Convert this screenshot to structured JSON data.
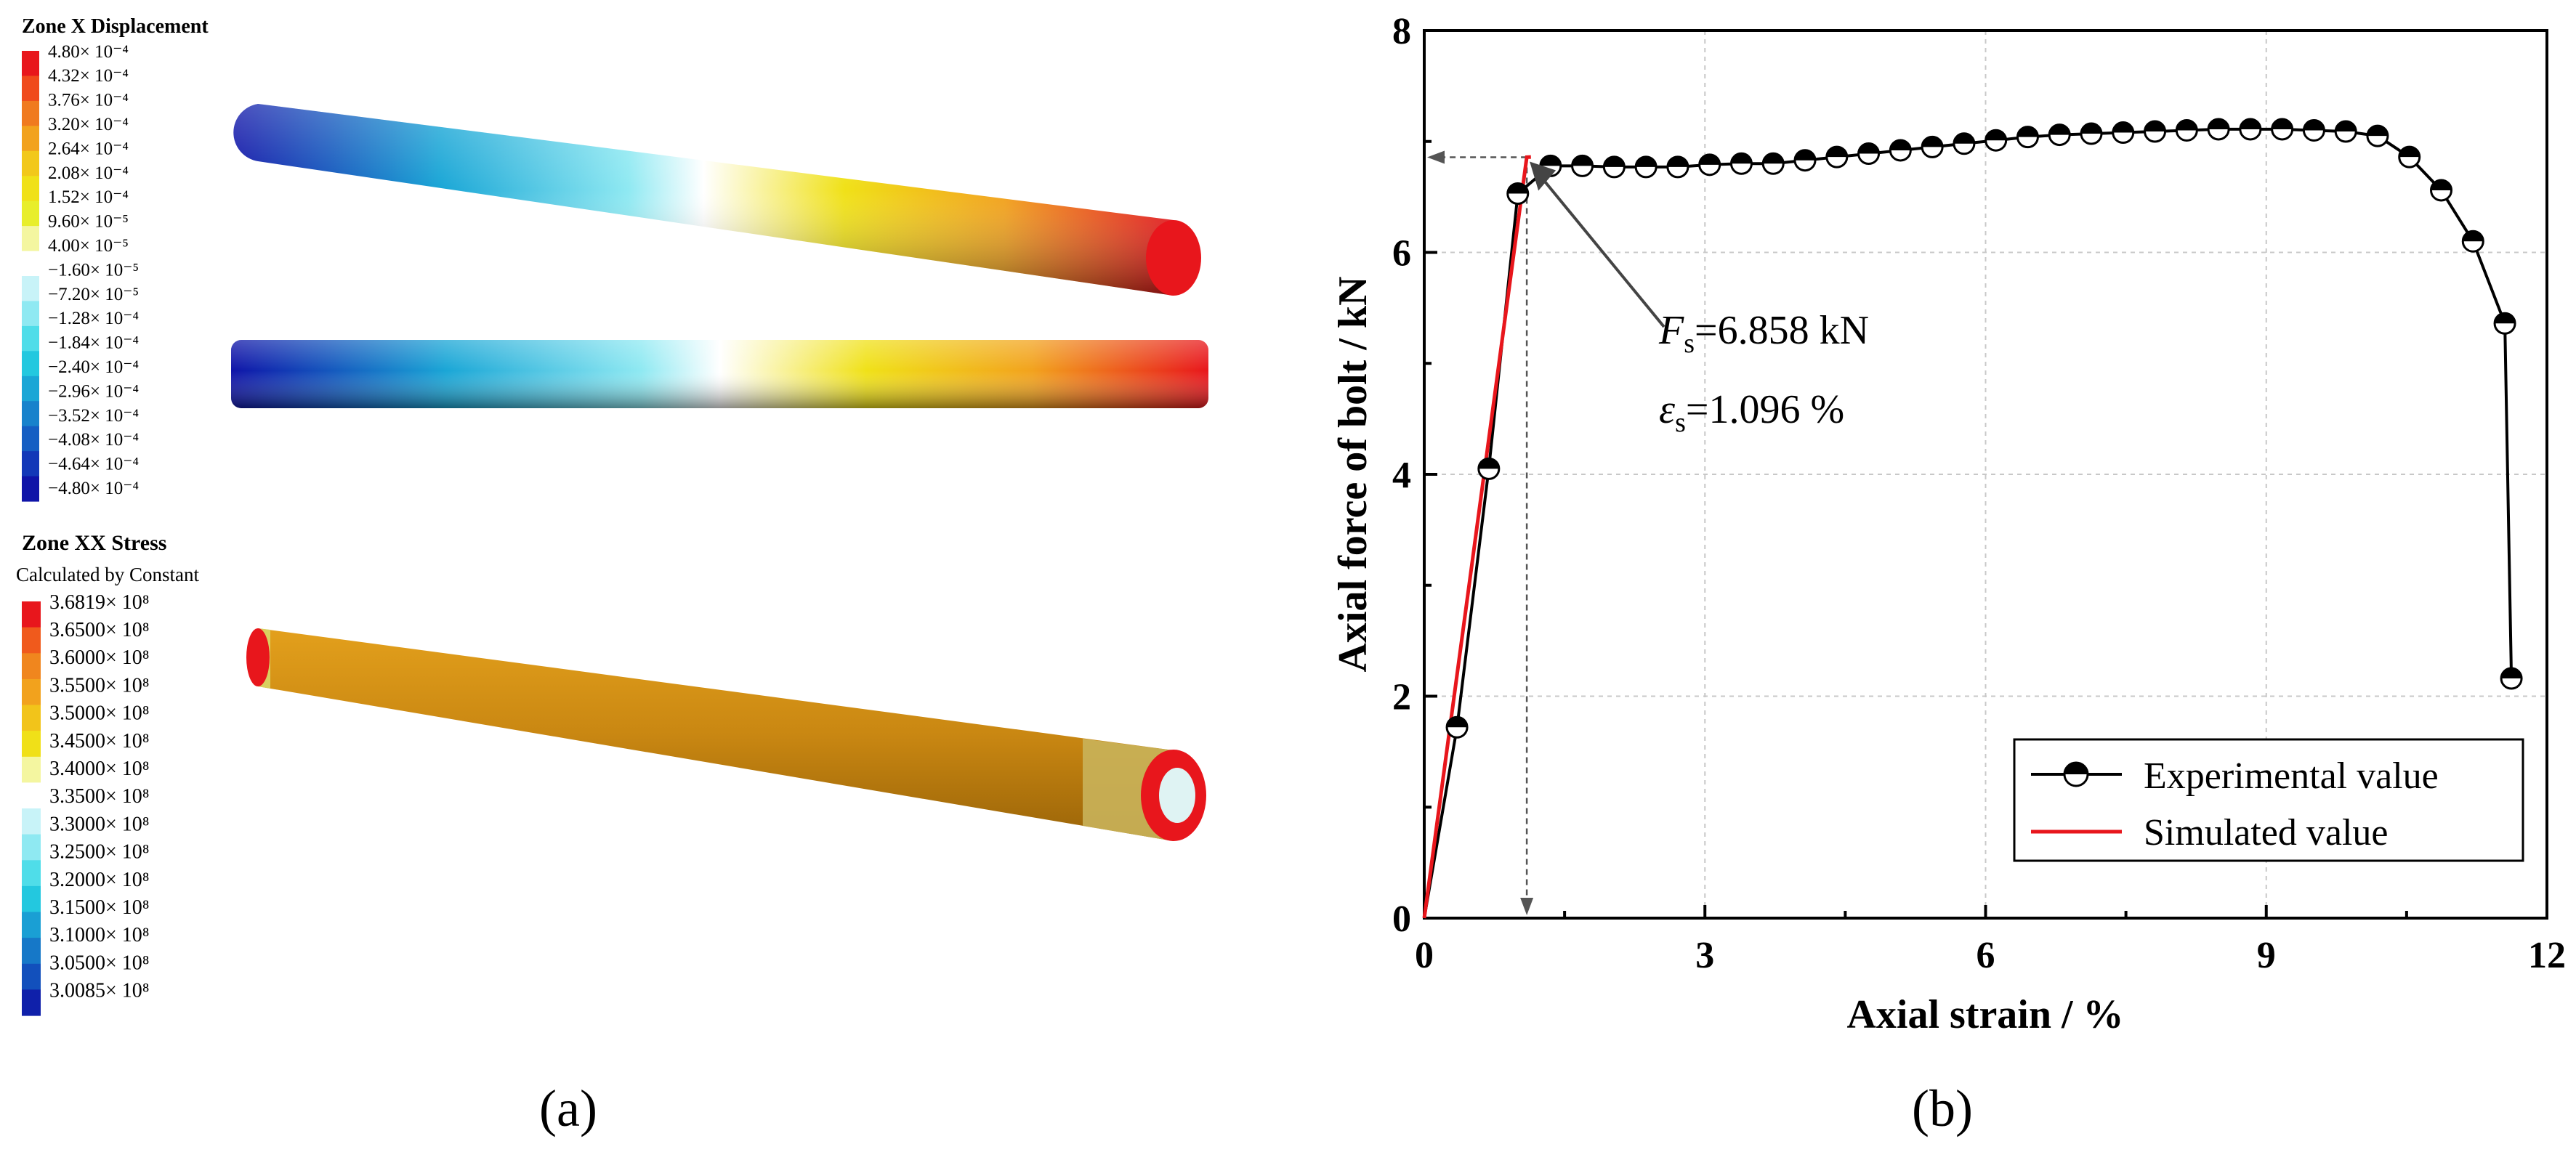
{
  "panel_a": {
    "caption": "(a)",
    "displacement": {
      "title": "Zone X Displacement",
      "colors": [
        "#e8161c",
        "#f04a1c",
        "#f07a1f",
        "#f2a21d",
        "#f2c81a",
        "#f0e118",
        "#e8ee2b",
        "#f4f6a0",
        "#ffffff",
        "#c8f3f8",
        "#8fe9f2",
        "#4fdde9",
        "#23c8df",
        "#1aa6d6",
        "#1782cc",
        "#145ec3",
        "#1238b8",
        "#0f14a8"
      ],
      "labels": [
        "4.80× 10⁻⁴",
        "4.32× 10⁻⁴",
        "3.76× 10⁻⁴",
        "3.20× 10⁻⁴",
        "2.64× 10⁻⁴",
        "2.08× 10⁻⁴",
        "1.52× 10⁻⁴",
        "9.60× 10⁻⁵",
        "4.00× 10⁻⁵",
        "−1.60× 10⁻⁵",
        "−7.20× 10⁻⁵",
        "−1.28× 10⁻⁴",
        "−1.84× 10⁻⁴",
        "−2.40× 10⁻⁴",
        "−2.96× 10⁻⁴",
        "−3.52× 10⁻⁴",
        "−4.08× 10⁻⁴",
        "−4.64× 10⁻⁴",
        "−4.80× 10⁻⁴"
      ]
    },
    "stress": {
      "title": "Zone XX Stress",
      "subtitle": "Calculated by Constant",
      "colors": [
        "#e8161c",
        "#f05a1c",
        "#f0861e",
        "#f2a21d",
        "#f2c41a",
        "#f0e018",
        "#f4f6a0",
        "#ffffff",
        "#c8f3f8",
        "#8fe9f2",
        "#4fdde9",
        "#23c8df",
        "#1a9fd4",
        "#1678c8",
        "#1250bc",
        "#0f20aa"
      ],
      "labels": [
        "3.6819× 10⁸",
        "3.6500× 10⁸",
        "3.6000× 10⁸",
        "3.5500× 10⁸",
        "3.5000× 10⁸",
        "3.4500× 10⁸",
        "3.4000× 10⁸",
        "3.3500× 10⁸",
        "3.3000× 10⁸",
        "3.2500× 10⁸",
        "3.2000× 10⁸",
        "3.1500× 10⁸",
        "3.1000× 10⁸",
        "3.0500× 10⁸",
        "3.0085× 10⁸"
      ]
    }
  },
  "panel_b": {
    "caption": "(b)",
    "annotation": {
      "force_symbol": "F",
      "force_sub": "s",
      "force_text": "=6.858 kN",
      "strain_symbol": "ε",
      "strain_sub": "s",
      "strain_text": "=1.096 %",
      "yield_strain": 1.096,
      "yield_force": 6.858
    },
    "chart_data": {
      "type": "line",
      "xlabel": "Axial strain / %",
      "ylabel": "Axial force of  bolt / kN",
      "xlim": [
        0,
        12
      ],
      "ylim": [
        0,
        8
      ],
      "xticks": [
        0,
        3,
        6,
        9,
        12
      ],
      "yticks": [
        0,
        2,
        4,
        6,
        8
      ],
      "grid": true,
      "legend_position": "bottom-right",
      "series": [
        {
          "name": "Experimental value",
          "color": "#000000",
          "marker": "half-filled-circle",
          "x": [
            0.0,
            0.35,
            0.69,
            1.0,
            1.35,
            1.69,
            2.03,
            2.37,
            2.71,
            3.05,
            3.39,
            3.73,
            4.07,
            4.41,
            4.75,
            5.09,
            5.43,
            5.77,
            6.11,
            6.45,
            6.79,
            7.13,
            7.47,
            7.81,
            8.15,
            8.49,
            8.83,
            9.17,
            9.51,
            9.85,
            10.19,
            10.53,
            10.87,
            11.21,
            11.55,
            11.62
          ],
          "y": [
            0.0,
            1.72,
            4.05,
            6.53,
            6.78,
            6.78,
            6.77,
            6.77,
            6.77,
            6.79,
            6.8,
            6.8,
            6.83,
            6.86,
            6.89,
            6.92,
            6.95,
            6.98,
            7.01,
            7.04,
            7.06,
            7.07,
            7.08,
            7.09,
            7.1,
            7.11,
            7.11,
            7.11,
            7.1,
            7.09,
            7.05,
            6.86,
            6.56,
            6.1,
            5.36,
            2.16
          ]
        },
        {
          "name": "Simulated value",
          "color": "#e8161c",
          "x": [
            0.0,
            1.096,
            1.14
          ],
          "y": [
            0.0,
            6.858,
            6.86
          ]
        }
      ]
    }
  }
}
